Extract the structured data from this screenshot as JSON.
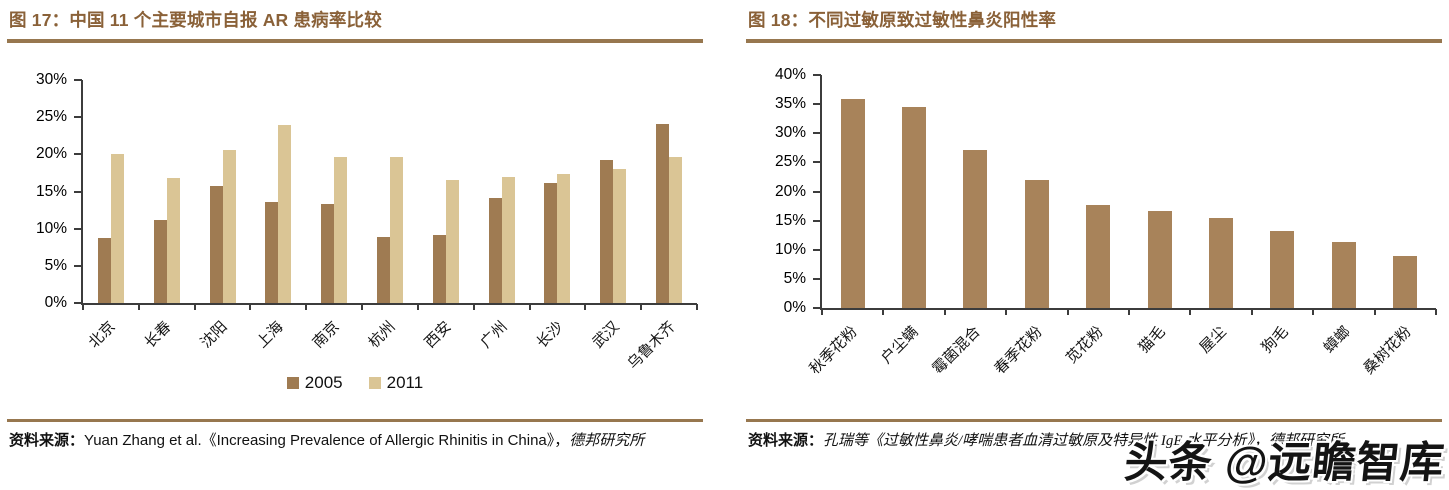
{
  "colors": {
    "title": "#8a6138",
    "rule": "#97774f",
    "axis": "#3c3c3c",
    "bar_2005": "#9f7b52",
    "bar_2011": "#dac595",
    "bar_right": "#a8835a"
  },
  "panels": [
    {
      "title": "图 17：中国 11 个主要城市自报 AR 患病率比较",
      "source_prefix": "资料来源：",
      "source_body": "Yuan Zhang et al.《Increasing Prevalence of Allergic Rhinitis in China》，",
      "source_suffix": "德邦研究所"
    },
    {
      "title": "图 18：不同过敏原致过敏性鼻炎阳性率",
      "source_prefix": "资料来源：",
      "source_body": "孔瑞等《过敏性鼻炎/哮喘患者血清过敏原及特异性 IgE 水平分析》，",
      "source_suffix": "德邦研究所"
    }
  ],
  "watermark": "头条 @远瞻智库",
  "chart_data": [
    {
      "type": "bar",
      "title": "中国 11 个主要城市自报 AR 患病率比较",
      "categories": [
        "北京",
        "长春",
        "沈阳",
        "上海",
        "南京",
        "杭州",
        "西安",
        "广州",
        "长沙",
        "武汉",
        "乌鲁木齐"
      ],
      "series": [
        {
          "name": "2005",
          "color": "#9f7b52",
          "values": [
            8.7,
            11.2,
            15.7,
            13.6,
            13.3,
            8.9,
            9.1,
            14.1,
            16.1,
            19.2,
            24.1
          ]
        },
        {
          "name": "2011",
          "color": "#dac595",
          "values": [
            20.1,
            16.8,
            20.6,
            23.9,
            19.6,
            19.7,
            16.5,
            17.0,
            17.3,
            18.0,
            19.6
          ]
        }
      ],
      "xlabel": "",
      "ylabel": "",
      "ylim": [
        0,
        30
      ],
      "ytick_step": 5,
      "ytick_format": "percent",
      "grid": false,
      "legend_position": "bottom"
    },
    {
      "type": "bar",
      "title": "不同过敏原致过敏性鼻炎阳性率",
      "categories": [
        "秋季花粉",
        "户尘螨",
        "霉菌混合",
        "春季花粉",
        "苋花粉",
        "猫毛",
        "屋尘",
        "狗毛",
        "蟑螂",
        "桑树花粉"
      ],
      "series": [
        {
          "name": "阳性率",
          "color": "#a8835a",
          "values": [
            35.8,
            34.5,
            27.1,
            22.0,
            17.7,
            16.6,
            15.5,
            13.3,
            11.4,
            9.0
          ]
        }
      ],
      "xlabel": "",
      "ylabel": "",
      "ylim": [
        0,
        40
      ],
      "ytick_step": 5,
      "ytick_format": "percent",
      "grid": false,
      "legend_position": "none"
    }
  ]
}
